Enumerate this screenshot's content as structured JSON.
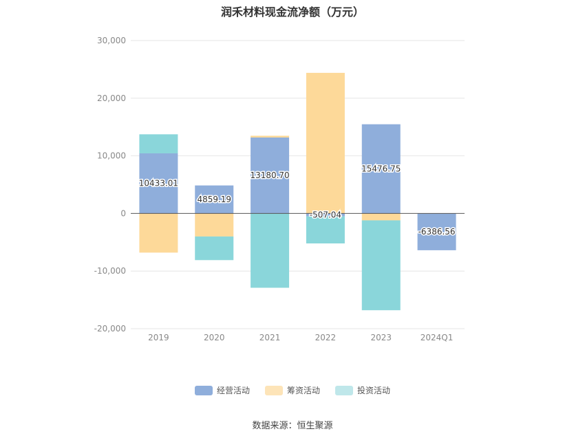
{
  "chart_data": {
    "type": "bar",
    "stacked": true,
    "title": "润禾材料现金流净额（万元）",
    "categories": [
      "2019",
      "2020",
      "2021",
      "2022",
      "2023",
      "2024Q1"
    ],
    "series": [
      {
        "name": "经营活动",
        "color": "#8faedb",
        "values": [
          10433.01,
          4859.19,
          13180.7,
          -507.04,
          15476.75,
          -6386.56
        ],
        "labels": [
          "10433.01",
          "4859.19",
          "13180.70",
          "-507.04",
          "15476.75",
          "-6386.56"
        ]
      },
      {
        "name": "筹资活动",
        "color": "#fdd999",
        "values": [
          -6800,
          -4000,
          300,
          24400,
          -1200,
          0
        ]
      },
      {
        "name": "投资活动",
        "color": "#8ad6da",
        "values": [
          3300,
          -4100,
          -12900,
          -4700,
          -15600,
          0
        ]
      }
    ],
    "ylim": [
      -20000,
      30000
    ],
    "yticks": [
      30000,
      20000,
      10000,
      0,
      -10000,
      -20000
    ],
    "ytick_labels": [
      "30,000",
      "20,000",
      "10,000",
      "0",
      "-10,000",
      "-20,000"
    ],
    "grid": true,
    "legend_position": "bottom"
  },
  "legend": [
    {
      "label": "经营活动",
      "color": "#8faedb"
    },
    {
      "label": "筹资活动",
      "color": "#fde4b8"
    },
    {
      "label": "投资活动",
      "color": "#bfe7ea"
    }
  ],
  "source": "数据来源：恒生聚源"
}
